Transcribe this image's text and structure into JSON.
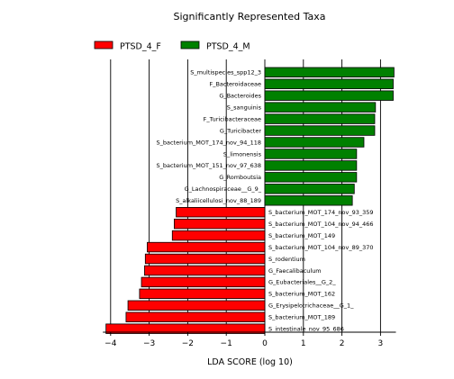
{
  "chart_data": {
    "type": "bar",
    "orientation": "horizontal",
    "title": "Significantly Represented Taxa",
    "xlabel": "LDA SCORE (log 10)",
    "ylabel": "",
    "xlim": [
      -4.2,
      3.4
    ],
    "xticks": [
      -4,
      -3,
      -2,
      -1,
      0,
      1,
      2,
      3
    ],
    "xtick_labels": [
      "−4",
      "−3",
      "−2",
      "−1",
      "0",
      "1",
      "2",
      "3"
    ],
    "grid": "vertical lines at major ticks",
    "legend": {
      "placement": "top-left",
      "entries": [
        {
          "name": "PTSD_4_F",
          "color": "#ff0000"
        },
        {
          "name": "PTSD_4_M",
          "color": "#008000"
        }
      ]
    },
    "series": [
      {
        "name": "PTSD_4_M",
        "color": "#008000",
        "categories": [
          "S_multispecies_spp12_3",
          "F_Bacteroidaceae",
          "G_Bacteroides",
          "S_sanguinis",
          "F_Turicibacteraceae",
          "G_Turicibacter",
          "S_bacterium_MOT_174_nov_94_118",
          "S_limonensis",
          "S_bacterium_MOT_151_nov_97_638",
          "G_Romboutsia",
          "G_Lachnospiraceae__G_9_",
          "S_alkaliicellulosi_nov_88_189"
        ],
        "values": [
          3.35,
          3.33,
          3.33,
          2.87,
          2.85,
          2.85,
          2.57,
          2.38,
          2.38,
          2.38,
          2.32,
          2.27
        ]
      },
      {
        "name": "PTSD_4_F",
        "color": "#ff0000",
        "categories": [
          "S_bacterium_MOT_174_nov_93_359",
          "S_bacterium_MOT_104_nov_94_466",
          "S_bacterium_MOT_149",
          "S_bacterium_MOT_104_nov_89_370",
          "S_rodentium",
          "G_Faecalibaculum",
          "G_Eubacteriales__G_2_",
          "S_bacterium_MOT_162",
          "G_Erysipelotrichaceae__G_1_",
          "S_bacterium_MOT_189",
          "S_intestinale_nov_95_686"
        ],
        "values": [
          -2.3,
          -2.35,
          -2.4,
          -3.05,
          -3.1,
          -3.12,
          -3.2,
          -3.25,
          -3.55,
          -3.6,
          -4.12
        ]
      }
    ]
  }
}
